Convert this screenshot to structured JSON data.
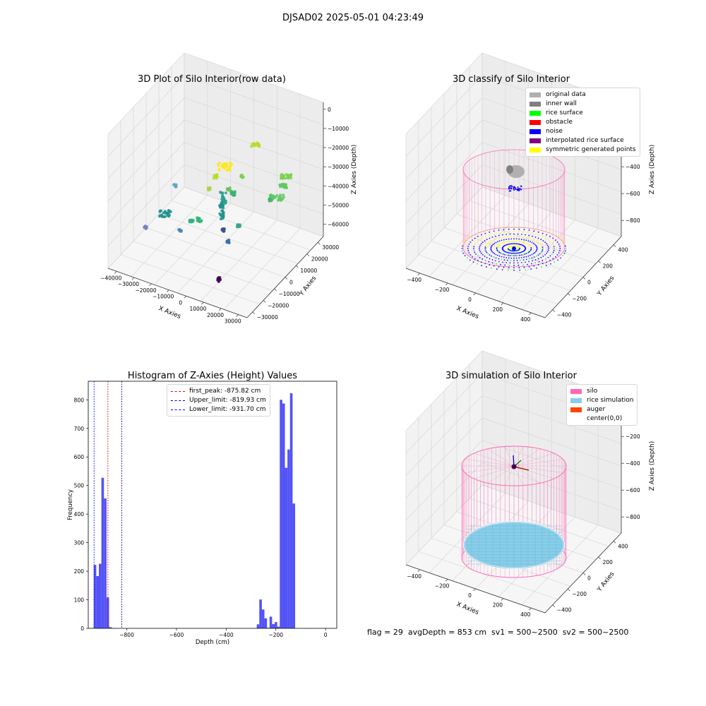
{
  "suptitle": "DJSAD02 2025-05-01 04:23:49",
  "status_line": "flag = 29  avgDepth = 853 cm  sv1 = 500~2500  sv2 = 500~2500",
  "colors": {
    "original": "#b0b0b0",
    "inner_wall": "#808080",
    "rice_surface": "#00ff00",
    "obstacle": "#ff0000",
    "noise": "#0000ff",
    "interpolated": "#800080",
    "symmetric": "#ffff00",
    "silo": "#ff69b4",
    "rice_sim": "#87ceeb",
    "auger": "#ff4500",
    "hist_bar": "#4a4af5"
  },
  "chart_data": [
    {
      "type": "scatter",
      "title": "3D Plot of Silo Interior(row data)",
      "xlabel": "X Axies",
      "ylabel": "Y Axies",
      "zlabel": "Z Axies (Depth)",
      "x_ticks": [
        "−40000",
        "−30000",
        "−20000",
        "−10000",
        "0",
        "10000",
        "20000",
        "30000"
      ],
      "y_ticks": [
        "−30000",
        "−20000",
        "−10000",
        "0",
        "10000",
        "20000",
        "30000"
      ],
      "z_ticks": [
        "0",
        "−10000",
        "−20000",
        "−30000",
        "−40000",
        "−50000",
        "−60000"
      ]
    },
    {
      "type": "scatter",
      "title": "3D classify of Silo Interior",
      "xlabel": "X Axies",
      "ylabel": "Y Axies",
      "zlabel": "Z Axies (Depth)",
      "x_ticks": [
        "−400",
        "−200",
        "0",
        "200",
        "400"
      ],
      "y_ticks": [
        "−400",
        "−200",
        "0",
        "200",
        "400"
      ],
      "z_ticks": [
        "0",
        "−200",
        "−400",
        "−600",
        "−800"
      ],
      "legend": [
        "original data",
        "inner wall",
        "rice surface",
        "obstacle",
        "noise",
        "interpolated rice surface",
        "symmetric generated points"
      ]
    },
    {
      "type": "bar",
      "title": "Histogram of Z-Axies (Height) Values",
      "xlabel": "Depth (cm)",
      "ylabel": "Frequency",
      "xlim": [
        -955,
        45
      ],
      "ylim": [
        0,
        865
      ],
      "x_ticks": [
        -800,
        -600,
        -400,
        -200,
        0
      ],
      "y_ticks": [
        0,
        100,
        200,
        300,
        400,
        500,
        600,
        700,
        800
      ],
      "bin_width": 10.3,
      "bins": [
        [
          -933,
          222
        ],
        [
          -922.7,
          183
        ],
        [
          -912.4,
          226
        ],
        [
          -902.1,
          527
        ],
        [
          -891.8,
          455
        ],
        [
          -881.5,
          108
        ],
        [
          -871.2,
          4
        ],
        [
          -860.9,
          1
        ],
        [
          -277,
          14
        ],
        [
          -266.7,
          101
        ],
        [
          -256.4,
          66
        ],
        [
          -246.1,
          35
        ],
        [
          -235.8,
          2
        ],
        [
          -225.5,
          41
        ],
        [
          -215.2,
          15
        ],
        [
          -204.9,
          22
        ],
        [
          -194.6,
          6
        ],
        [
          -184.3,
          800
        ],
        [
          -174,
          787
        ],
        [
          -163.7,
          562
        ],
        [
          -153.4,
          626
        ],
        [
          -143.1,
          823
        ],
        [
          -132.8,
          437
        ]
      ],
      "vlines": [
        {
          "name": "first_peak: -875.82 cm",
          "x": -875.82,
          "color": "#e00000"
        },
        {
          "name": "Upper_limit: -819.93 cm",
          "x": -819.93,
          "color": "#00008b"
        },
        {
          "name": "Lower_limit: -931.70 cm",
          "x": -931.7,
          "color": "#0000ff"
        }
      ]
    },
    {
      "type": "scatter",
      "title": "3D simulation of Silo Interior",
      "xlabel": "X Axies",
      "ylabel": "Y Axies",
      "zlabel": "Z Axies (Depth)",
      "x_ticks": [
        "−400",
        "−200",
        "0",
        "200",
        "400"
      ],
      "y_ticks": [
        "−400",
        "−200",
        "0",
        "200",
        "400"
      ],
      "z_ticks": [
        "0",
        "−200",
        "−400",
        "−600",
        "−800"
      ],
      "legend": [
        "silo",
        "rice simulation",
        "auger",
        "center(0,0)"
      ]
    }
  ]
}
